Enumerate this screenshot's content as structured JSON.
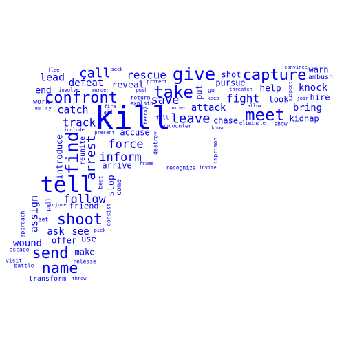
{
  "words": [
    {
      "text": "kill",
      "color": "#0000ee"
    },
    {
      "text": "tell",
      "color": "#0000ee"
    },
    {
      "text": "give",
      "color": "#0000ee"
    },
    {
      "text": "find",
      "color": "#0000ee"
    },
    {
      "text": "meet",
      "color": "#0000ee"
    },
    {
      "text": "take",
      "color": "#0000ee"
    },
    {
      "text": "capture",
      "color": "#0000ee"
    },
    {
      "text": "confront",
      "color": "#0000ee"
    },
    {
      "text": "shoot",
      "color": "#0000ee"
    },
    {
      "text": "name",
      "color": "#0000ee"
    },
    {
      "text": "send",
      "color": "#0000ee"
    },
    {
      "text": "leave",
      "color": "#0000ee"
    },
    {
      "text": "call",
      "color": "#0000ee"
    },
    {
      "text": "arrest",
      "color": "#0000ee"
    },
    {
      "text": "save",
      "color": "#0000ee"
    },
    {
      "text": "follow",
      "color": "#0000ee"
    },
    {
      "text": "inform",
      "color": "#0000ee"
    },
    {
      "text": "force",
      "color": "#0000ee"
    },
    {
      "text": "rescue",
      "color": "#0000ee"
    },
    {
      "text": "fight",
      "color": "#0000ee"
    },
    {
      "text": "track",
      "color": "#0000ee"
    },
    {
      "text": "catch",
      "color": "#0000ee"
    },
    {
      "text": "assign",
      "color": "#0000ee"
    },
    {
      "text": "lead",
      "color": "#0000ee"
    },
    {
      "text": "attack",
      "color": "#0000ee"
    },
    {
      "text": "knock",
      "color": "#0000ee"
    },
    {
      "text": "bring",
      "color": "#0000ee"
    },
    {
      "text": "wound",
      "color": "#0000ee"
    },
    {
      "text": "ask",
      "color": "#0000ee"
    },
    {
      "text": "see",
      "color": "#0000ee"
    },
    {
      "text": "defeat",
      "color": "#0000ee"
    },
    {
      "text": "help",
      "color": "#0000ee"
    },
    {
      "text": "stop",
      "color": "#0000ee"
    },
    {
      "text": "end",
      "color": "#0000ee"
    },
    {
      "text": "reveal",
      "color": "#0000ee"
    },
    {
      "text": "introduce",
      "color": "#0000ee"
    },
    {
      "text": "pursue",
      "color": "#0000ee"
    },
    {
      "text": "shot",
      "color": "#0000ee"
    },
    {
      "text": "accuse",
      "color": "#0000ee"
    },
    {
      "text": "chase",
      "color": "#0000ee"
    },
    {
      "text": "look",
      "color": "#0000ee"
    },
    {
      "text": "kidnap",
      "color": "#0000ee"
    },
    {
      "text": "hire",
      "color": "#0000ee"
    },
    {
      "text": "warn",
      "color": "#0000ee"
    },
    {
      "text": "put",
      "color": "#0000ee"
    },
    {
      "text": "arrive",
      "color": "#0000ee"
    },
    {
      "text": "friend",
      "color": "#0000ee"
    },
    {
      "text": "make",
      "color": "#0000ee"
    },
    {
      "text": "offer",
      "color": "#0000ee"
    },
    {
      "text": "use",
      "color": "#0000ee"
    },
    {
      "text": "reunite",
      "color": "#0000ee"
    },
    {
      "text": "ambush",
      "color": "#0000ee"
    },
    {
      "text": "work",
      "color": "#0000ee"
    },
    {
      "text": "transform",
      "color": "#0000ee"
    },
    {
      "text": "come",
      "color": "#0000ee"
    },
    {
      "text": "imprison",
      "color": "#0000ee"
    },
    {
      "text": "destroy",
      "color": "#0000ee"
    },
    {
      "text": "encounter",
      "color": "#0000ee"
    },
    {
      "text": "recognize",
      "color": "#0000ee"
    },
    {
      "text": "explain",
      "color": "#0000ee"
    },
    {
      "text": "return",
      "color": "#0000ee"
    },
    {
      "text": "marry",
      "color": "#0000ee"
    },
    {
      "text": "go",
      "color": "#0000ee"
    },
    {
      "text": "approach",
      "color": "#0000ee"
    },
    {
      "text": "release",
      "color": "#0000ee"
    },
    {
      "text": "escape",
      "color": "#0000ee"
    },
    {
      "text": "visit",
      "color": "#0000ee"
    },
    {
      "text": "battle",
      "color": "#0000ee"
    },
    {
      "text": "set",
      "color": "#0000ee"
    },
    {
      "text": "pull",
      "color": "#0000ee"
    },
    {
      "text": "beat",
      "color": "#0000ee"
    },
    {
      "text": "consist",
      "color": "#0000ee"
    },
    {
      "text": "show",
      "color": "#0000ee"
    },
    {
      "text": "fall",
      "color": "#0000ee"
    },
    {
      "text": "eliminate",
      "color": "#0000ee"
    },
    {
      "text": "threaten",
      "color": "#0000ee"
    },
    {
      "text": "allow",
      "color": "#0000ee"
    },
    {
      "text": "suspect",
      "color": "#0000ee"
    },
    {
      "text": "join",
      "color": "#0000ee"
    },
    {
      "text": "convince",
      "color": "#0000ee"
    },
    {
      "text": "keep",
      "color": "#0000ee"
    },
    {
      "text": "know",
      "color": "#0000ee"
    },
    {
      "text": "invite",
      "color": "#0000ee"
    },
    {
      "text": "order",
      "color": "#0000ee"
    },
    {
      "text": "arrange",
      "color": "#0000ee"
    },
    {
      "text": "betray",
      "color": "#0000ee"
    },
    {
      "text": "protect",
      "color": "#0000ee"
    },
    {
      "text": "push",
      "color": "#0000ee"
    },
    {
      "text": "murder",
      "color": "#0000ee"
    },
    {
      "text": "involve",
      "color": "#0000ee"
    },
    {
      "text": "flee",
      "color": "#0000ee"
    },
    {
      "text": "seek",
      "color": "#0000ee"
    },
    {
      "text": "fire",
      "color": "#0000ee"
    },
    {
      "text": "aid",
      "color": "#0000ee"
    },
    {
      "text": "include",
      "color": "#0000ee"
    },
    {
      "text": "present",
      "color": "#0000ee"
    },
    {
      "text": "frame",
      "color": "#0000ee"
    },
    {
      "text": "injure",
      "color": "#0000ee"
    },
    {
      "text": "pick",
      "color": "#0000ee"
    },
    {
      "text": "throw",
      "color": "#0000ee"
    }
  ]
}
